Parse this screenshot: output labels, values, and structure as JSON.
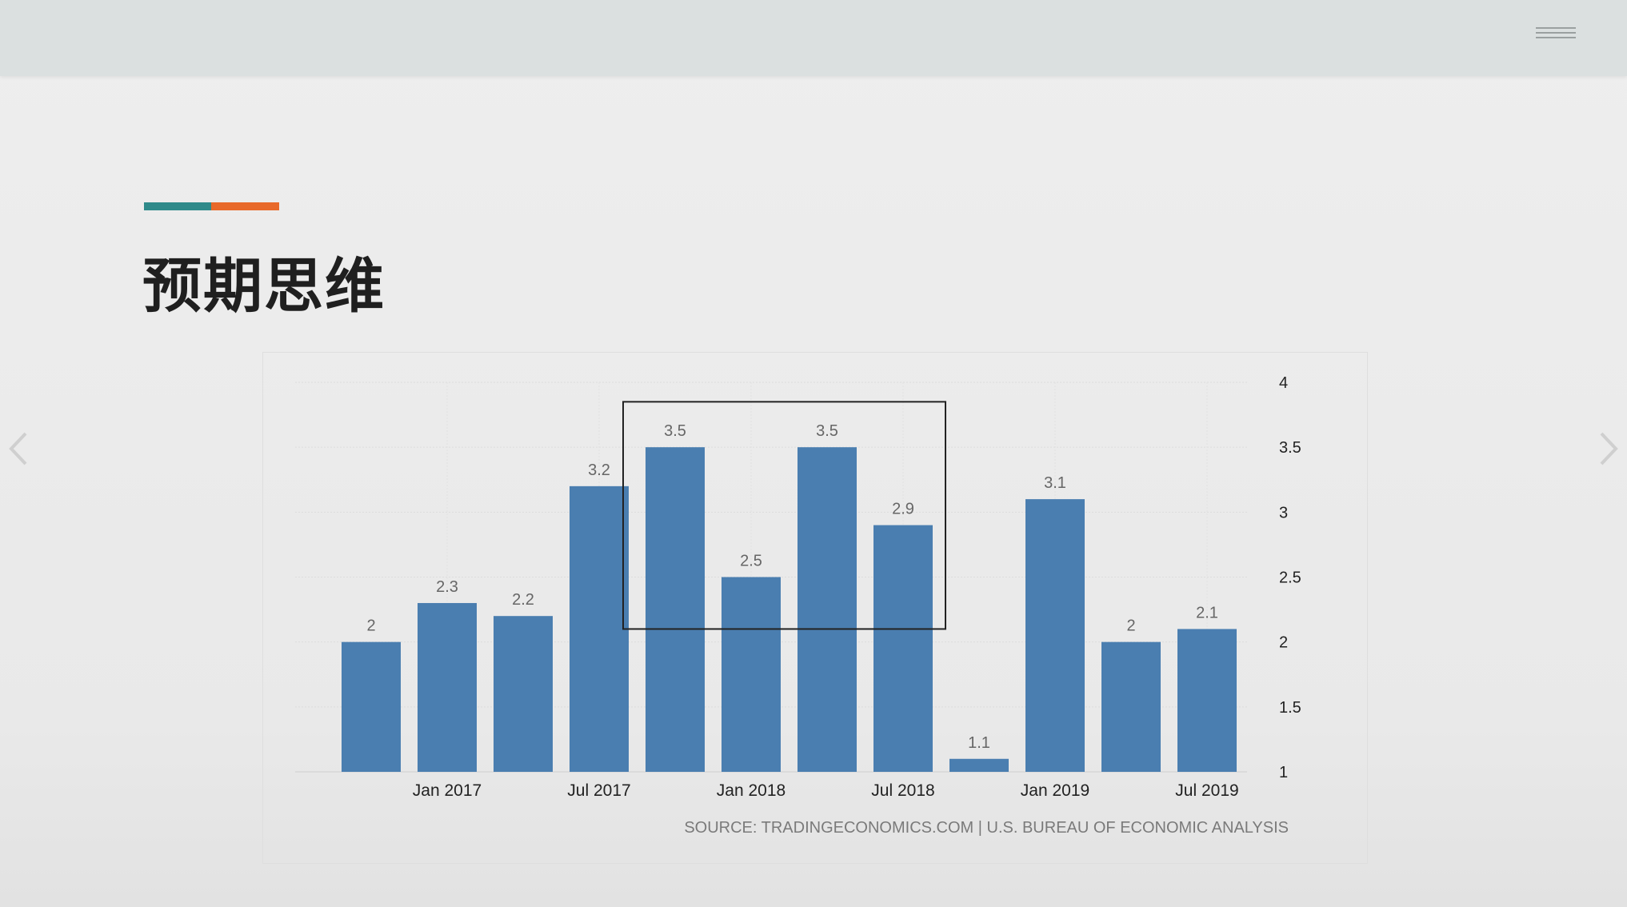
{
  "slide": {
    "title": "预期思维",
    "accent_colors": [
      "#2f8a8a",
      "#e8692a"
    ]
  },
  "icons": {
    "menu": "hamburger-menu-icon",
    "prev": "chevron-left-icon",
    "next": "chevron-right-icon"
  },
  "chart_data": {
    "type": "bar",
    "x": [
      "2016-Q4",
      "2017-Q1",
      "2017-Q2",
      "2017-Q3",
      "2017-Q4",
      "2018-Q1",
      "2018-Q2",
      "2018-Q3",
      "2018-Q4",
      "2019-Q1",
      "2019-Q2",
      "2019-Q3"
    ],
    "values": [
      2,
      2.3,
      2.2,
      3.2,
      3.5,
      2.5,
      3.5,
      2.9,
      1.1,
      3.1,
      2,
      2.1
    ],
    "data_labels": [
      "2",
      "2.3",
      "2.2",
      "3.2",
      "3.5",
      "2.5",
      "3.5",
      "2.9",
      "1.1",
      "3.1",
      "2",
      "2.1"
    ],
    "x_tick_labels": [
      "Jan 2017",
      "Jul 2017",
      "Jan 2018",
      "Jul 2018",
      "Jan 2019",
      "Jul 2019"
    ],
    "y_ticks": [
      1,
      1.5,
      2,
      2.5,
      3,
      3.5,
      4
    ],
    "y_tick_labels": [
      "1",
      "1.5",
      "2",
      "2.5",
      "3",
      "3.5",
      "4"
    ],
    "ylim": [
      1,
      4
    ],
    "y_axis_side": "right",
    "grid": true,
    "bar_color": "#4a7eb0",
    "highlight_box": {
      "from_x": "2017-Q3",
      "to_x": "2018-Q3",
      "y_bottom": 2.1,
      "y_top": 3.85
    },
    "source": "SOURCE: TRADINGECONOMICS.COM | U.S. BUREAU OF ECONOMIC ANALYSIS",
    "title": "",
    "xlabel": "",
    "ylabel": ""
  }
}
